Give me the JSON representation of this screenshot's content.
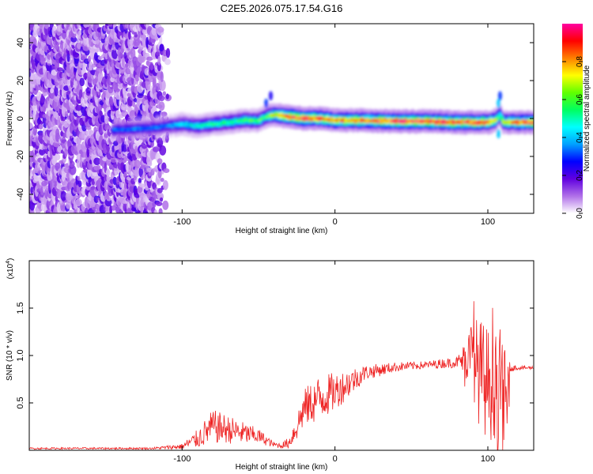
{
  "chart_data": [
    {
      "type": "heatmap",
      "title": "C2E5.2026.075.17.54.G16",
      "xlabel": "Height of straight line (km)",
      "ylabel": "Frequency (Hz)",
      "xlim": [
        -200,
        130
      ],
      "ylim": [
        -50,
        50
      ],
      "xticks": [
        -100,
        0,
        100
      ],
      "xtick_labels": [
        "-100",
        "0",
        "100"
      ],
      "yticks": [
        -40,
        -20,
        0,
        20,
        40
      ],
      "ytick_labels": [
        "-40",
        "-20",
        "0",
        "20",
        "40"
      ],
      "colorbar": {
        "label": "Normalized spectral amplitude",
        "range": [
          0,
          1
        ],
        "ticks": [
          0.0,
          0.2,
          0.4,
          0.6,
          0.8
        ],
        "tick_labels": [
          "0.0",
          "0.2",
          "0.4",
          "0.6",
          "0.8"
        ],
        "colors": [
          "#ffffff",
          "#b070e8",
          "#6000e0",
          "#0000ff",
          "#00a0ff",
          "#00ffff",
          "#00ff60",
          "#60ff00",
          "#ffff00",
          "#ff8000",
          "#ff0000",
          "#ff00a0"
        ]
      },
      "noise_region_x": [
        -200,
        -108
      ],
      "ridge": {
        "x": [
          -145,
          -120,
          -110,
          -100,
          -90,
          -80,
          -70,
          -60,
          -50,
          -45,
          -40,
          -30,
          -20,
          -10,
          0,
          20,
          40,
          60,
          80,
          90,
          100,
          105,
          108,
          110,
          120,
          130
        ],
        "freq": [
          -6,
          -5,
          -4,
          -3,
          -4,
          -3,
          -2,
          -1,
          -1,
          1,
          2,
          1,
          0,
          0,
          -1,
          -1,
          -1.5,
          -1.5,
          -2,
          -2,
          -2,
          -1,
          2,
          -2,
          -2,
          -2
        ],
        "amplitude": [
          0.35,
          0.35,
          0.35,
          0.45,
          0.5,
          0.55,
          0.55,
          0.6,
          0.6,
          0.6,
          0.75,
          0.9,
          0.95,
          0.9,
          0.85,
          0.9,
          0.95,
          0.95,
          0.95,
          0.9,
          0.9,
          0.75,
          0.5,
          0.75,
          0.9,
          0.9
        ]
      }
    },
    {
      "type": "line",
      "xlabel": "Height of straight line (km)",
      "ylabel": "SNR (10 * v/v)",
      "y_multiplier": "(x10",
      "y_multiplier_exp": "4",
      "y_multiplier_close": ")",
      "xlim": [
        -200,
        130
      ],
      "ylim": [
        0,
        2.0
      ],
      "xticks": [
        -100,
        0,
        100
      ],
      "xtick_labels": [
        "-100",
        "0",
        "100"
      ],
      "yticks": [
        0.5,
        1.0,
        1.5
      ],
      "ytick_labels": [
        "0.5",
        "1.0",
        "1.5"
      ],
      "series": [
        {
          "name": "SNR",
          "color": "#ee2222",
          "envelope_x": [
            -200,
            -120,
            -100,
            -90,
            -80,
            -70,
            -60,
            -50,
            -40,
            -35,
            -30,
            -25,
            -20,
            -10,
            0,
            10,
            20,
            40,
            60,
            80,
            85,
            90,
            95,
            100,
            105,
            108,
            112,
            115,
            120,
            130
          ],
          "envelope_y": [
            0.02,
            0.02,
            0.04,
            0.12,
            0.25,
            0.22,
            0.18,
            0.15,
            0.06,
            0.05,
            0.08,
            0.25,
            0.45,
            0.55,
            0.62,
            0.72,
            0.82,
            0.88,
            0.9,
            0.93,
            0.95,
            1.0,
            0.8,
            0.7,
            0.9,
            0.6,
            0.5,
            0.87,
            0.87,
            0.87
          ],
          "noise_amplitude": [
            0.01,
            0.01,
            0.03,
            0.1,
            0.18,
            0.15,
            0.12,
            0.08,
            0.03,
            0.03,
            0.06,
            0.15,
            0.2,
            0.25,
            0.2,
            0.15,
            0.08,
            0.05,
            0.04,
            0.06,
            0.2,
            0.4,
            0.6,
            0.6,
            0.8,
            0.7,
            0.5,
            0.04,
            0.02,
            0.02
          ]
        }
      ]
    }
  ]
}
